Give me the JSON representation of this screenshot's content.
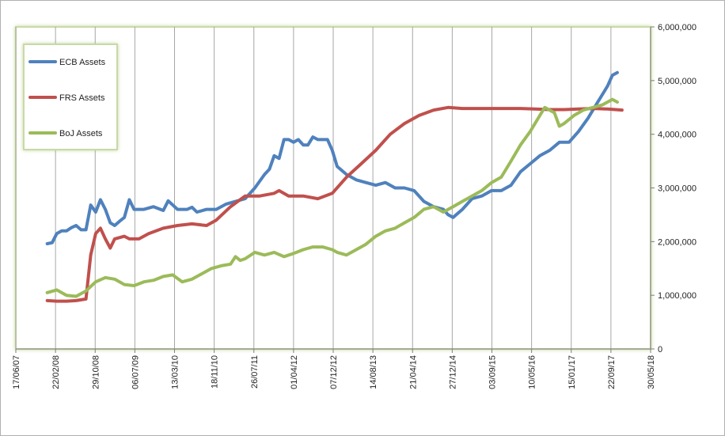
{
  "chart_data": {
    "type": "line",
    "title": "",
    "xlabel": "",
    "ylabel": "",
    "x_axis": {
      "min": "2007-06-17",
      "max": "2018-05-30",
      "tick_labels": [
        "17/06/07",
        "22/02/08",
        "29/10/08",
        "06/07/09",
        "13/03/10",
        "18/11/10",
        "26/07/11",
        "01/04/12",
        "07/12/12",
        "14/08/13",
        "21/04/14",
        "27/12/14",
        "03/09/15",
        "10/05/16",
        "15/01/17",
        "22/09/17",
        "30/05/18"
      ],
      "tick_dates": [
        "2007-06-17",
        "2008-02-22",
        "2008-10-29",
        "2009-07-06",
        "2010-03-13",
        "2010-11-18",
        "2011-07-26",
        "2012-04-01",
        "2012-12-07",
        "2013-08-14",
        "2014-04-21",
        "2014-12-27",
        "2015-09-03",
        "2016-05-10",
        "2017-01-15",
        "2017-09-22",
        "2018-05-30"
      ],
      "gridlines": true
    },
    "y_axis": {
      "min": 0,
      "max": 6000000,
      "position": "right",
      "tick_values": [
        0,
        1000000,
        2000000,
        3000000,
        4000000,
        5000000,
        6000000
      ],
      "tick_labels": [
        "0",
        "1,000,000",
        "2,000,000",
        "3,000,000",
        "4,000,000",
        "5,000,000",
        "6,000,000"
      ]
    },
    "legend": {
      "placement": "top-left",
      "entries": [
        "ECB Assets",
        "FRS Assets",
        "BoJ Assets"
      ]
    },
    "series": [
      {
        "name": "ECB Assets",
        "color": "#4f81bd",
        "points": [
          [
            "2008-01-01",
            1960000
          ],
          [
            "2008-02-01",
            1980000
          ],
          [
            "2008-03-01",
            2150000
          ],
          [
            "2008-04-01",
            2200000
          ],
          [
            "2008-05-01",
            2200000
          ],
          [
            "2008-06-01",
            2260000
          ],
          [
            "2008-07-01",
            2300000
          ],
          [
            "2008-08-01",
            2220000
          ],
          [
            "2008-09-01",
            2220000
          ],
          [
            "2008-10-01",
            2680000
          ],
          [
            "2008-11-01",
            2550000
          ],
          [
            "2008-12-01",
            2780000
          ],
          [
            "2009-01-01",
            2600000
          ],
          [
            "2009-02-01",
            2350000
          ],
          [
            "2009-03-01",
            2300000
          ],
          [
            "2009-04-01",
            2380000
          ],
          [
            "2009-05-01",
            2450000
          ],
          [
            "2009-06-01",
            2780000
          ],
          [
            "2009-07-01",
            2600000
          ],
          [
            "2009-09-01",
            2600000
          ],
          [
            "2009-11-01",
            2650000
          ],
          [
            "2010-01-01",
            2580000
          ],
          [
            "2010-02-01",
            2760000
          ],
          [
            "2010-04-01",
            2600000
          ],
          [
            "2010-06-01",
            2600000
          ],
          [
            "2010-07-01",
            2640000
          ],
          [
            "2010-08-01",
            2550000
          ],
          [
            "2010-10-01",
            2600000
          ],
          [
            "2010-12-01",
            2600000
          ],
          [
            "2011-02-01",
            2700000
          ],
          [
            "2011-04-01",
            2750000
          ],
          [
            "2011-06-01",
            2800000
          ],
          [
            "2011-08-01",
            3000000
          ],
          [
            "2011-10-01",
            3250000
          ],
          [
            "2011-11-01",
            3350000
          ],
          [
            "2011-12-01",
            3600000
          ],
          [
            "2012-01-01",
            3550000
          ],
          [
            "2012-02-01",
            3900000
          ],
          [
            "2012-03-01",
            3900000
          ],
          [
            "2012-04-01",
            3850000
          ],
          [
            "2012-05-01",
            3900000
          ],
          [
            "2012-06-01",
            3800000
          ],
          [
            "2012-07-01",
            3800000
          ],
          [
            "2012-08-01",
            3950000
          ],
          [
            "2012-09-01",
            3900000
          ],
          [
            "2012-10-01",
            3900000
          ],
          [
            "2012-11-01",
            3900000
          ],
          [
            "2012-12-01",
            3700000
          ],
          [
            "2013-01-01",
            3400000
          ],
          [
            "2013-03-01",
            3250000
          ],
          [
            "2013-05-01",
            3150000
          ],
          [
            "2013-07-01",
            3100000
          ],
          [
            "2013-09-01",
            3050000
          ],
          [
            "2013-11-01",
            3100000
          ],
          [
            "2014-01-01",
            3000000
          ],
          [
            "2014-03-01",
            3000000
          ],
          [
            "2014-05-01",
            2950000
          ],
          [
            "2014-07-01",
            2750000
          ],
          [
            "2014-09-01",
            2650000
          ],
          [
            "2014-11-01",
            2600000
          ],
          [
            "2014-12-01",
            2500000
          ],
          [
            "2015-01-01",
            2450000
          ],
          [
            "2015-03-01",
            2600000
          ],
          [
            "2015-05-01",
            2800000
          ],
          [
            "2015-07-01",
            2850000
          ],
          [
            "2015-09-01",
            2950000
          ],
          [
            "2015-11-01",
            2950000
          ],
          [
            "2016-01-01",
            3050000
          ],
          [
            "2016-03-01",
            3300000
          ],
          [
            "2016-05-01",
            3450000
          ],
          [
            "2016-07-01",
            3600000
          ],
          [
            "2016-09-01",
            3700000
          ],
          [
            "2016-11-01",
            3850000
          ],
          [
            "2017-01-01",
            3850000
          ],
          [
            "2017-03-01",
            4050000
          ],
          [
            "2017-05-01",
            4300000
          ],
          [
            "2017-07-01",
            4600000
          ],
          [
            "2017-09-01",
            4900000
          ],
          [
            "2017-10-01",
            5100000
          ],
          [
            "2017-11-01",
            5150000
          ]
        ]
      },
      {
        "name": "FRS Assets",
        "color": "#c0504d",
        "points": [
          [
            "2008-01-01",
            900000
          ],
          [
            "2008-03-01",
            890000
          ],
          [
            "2008-05-01",
            890000
          ],
          [
            "2008-07-01",
            900000
          ],
          [
            "2008-09-01",
            930000
          ],
          [
            "2008-10-01",
            1750000
          ],
          [
            "2008-11-01",
            2150000
          ],
          [
            "2008-12-01",
            2250000
          ],
          [
            "2009-01-01",
            2050000
          ],
          [
            "2009-02-01",
            1880000
          ],
          [
            "2009-03-01",
            2050000
          ],
          [
            "2009-05-01",
            2100000
          ],
          [
            "2009-06-01",
            2050000
          ],
          [
            "2009-08-01",
            2050000
          ],
          [
            "2009-10-01",
            2150000
          ],
          [
            "2010-01-01",
            2250000
          ],
          [
            "2010-04-01",
            2300000
          ],
          [
            "2010-07-01",
            2330000
          ],
          [
            "2010-10-01",
            2300000
          ],
          [
            "2010-12-01",
            2400000
          ],
          [
            "2011-03-01",
            2650000
          ],
          [
            "2011-06-01",
            2850000
          ],
          [
            "2011-09-01",
            2850000
          ],
          [
            "2011-12-01",
            2900000
          ],
          [
            "2012-01-01",
            2950000
          ],
          [
            "2012-03-01",
            2850000
          ],
          [
            "2012-06-01",
            2850000
          ],
          [
            "2012-09-01",
            2800000
          ],
          [
            "2012-12-01",
            2900000
          ],
          [
            "2013-03-01",
            3200000
          ],
          [
            "2013-06-01",
            3450000
          ],
          [
            "2013-09-01",
            3700000
          ],
          [
            "2013-12-01",
            4000000
          ],
          [
            "2014-03-01",
            4200000
          ],
          [
            "2014-06-01",
            4350000
          ],
          [
            "2014-09-01",
            4450000
          ],
          [
            "2014-12-01",
            4500000
          ],
          [
            "2015-03-01",
            4480000
          ],
          [
            "2015-06-01",
            4480000
          ],
          [
            "2015-09-01",
            4480000
          ],
          [
            "2015-12-01",
            4480000
          ],
          [
            "2016-03-01",
            4480000
          ],
          [
            "2016-06-01",
            4470000
          ],
          [
            "2016-09-01",
            4460000
          ],
          [
            "2016-12-01",
            4460000
          ],
          [
            "2017-03-01",
            4470000
          ],
          [
            "2017-06-01",
            4480000
          ],
          [
            "2017-09-01",
            4470000
          ],
          [
            "2017-12-01",
            4450000
          ]
        ]
      },
      {
        "name": "BoJ Assets",
        "color": "#9bbb59",
        "points": [
          [
            "2008-01-01",
            1050000
          ],
          [
            "2008-03-01",
            1100000
          ],
          [
            "2008-05-01",
            1000000
          ],
          [
            "2008-07-01",
            980000
          ],
          [
            "2008-09-01",
            1080000
          ],
          [
            "2008-11-01",
            1250000
          ],
          [
            "2009-01-01",
            1330000
          ],
          [
            "2009-03-01",
            1300000
          ],
          [
            "2009-05-01",
            1200000
          ],
          [
            "2009-07-01",
            1180000
          ],
          [
            "2009-09-01",
            1250000
          ],
          [
            "2009-11-01",
            1280000
          ],
          [
            "2010-01-01",
            1350000
          ],
          [
            "2010-03-01",
            1380000
          ],
          [
            "2010-05-01",
            1250000
          ],
          [
            "2010-07-01",
            1300000
          ],
          [
            "2010-09-01",
            1400000
          ],
          [
            "2010-11-01",
            1500000
          ],
          [
            "2011-01-01",
            1550000
          ],
          [
            "2011-03-01",
            1580000
          ],
          [
            "2011-04-01",
            1720000
          ],
          [
            "2011-05-01",
            1650000
          ],
          [
            "2011-06-01",
            1680000
          ],
          [
            "2011-08-01",
            1800000
          ],
          [
            "2011-10-01",
            1750000
          ],
          [
            "2011-12-01",
            1800000
          ],
          [
            "2012-02-01",
            1720000
          ],
          [
            "2012-04-01",
            1780000
          ],
          [
            "2012-06-01",
            1850000
          ],
          [
            "2012-08-01",
            1900000
          ],
          [
            "2012-10-01",
            1900000
          ],
          [
            "2012-12-01",
            1850000
          ],
          [
            "2013-01-01",
            1800000
          ],
          [
            "2013-03-01",
            1750000
          ],
          [
            "2013-05-01",
            1850000
          ],
          [
            "2013-07-01",
            1950000
          ],
          [
            "2013-09-01",
            2100000
          ],
          [
            "2013-11-01",
            2200000
          ],
          [
            "2014-01-01",
            2250000
          ],
          [
            "2014-03-01",
            2350000
          ],
          [
            "2014-05-01",
            2450000
          ],
          [
            "2014-07-01",
            2600000
          ],
          [
            "2014-09-01",
            2650000
          ],
          [
            "2014-11-01",
            2550000
          ],
          [
            "2015-01-01",
            2650000
          ],
          [
            "2015-03-01",
            2750000
          ],
          [
            "2015-05-01",
            2850000
          ],
          [
            "2015-07-01",
            2950000
          ],
          [
            "2015-09-01",
            3100000
          ],
          [
            "2015-11-01",
            3200000
          ],
          [
            "2016-01-01",
            3500000
          ],
          [
            "2016-03-01",
            3800000
          ],
          [
            "2016-05-01",
            4050000
          ],
          [
            "2016-07-01",
            4350000
          ],
          [
            "2016-08-01",
            4500000
          ],
          [
            "2016-10-01",
            4400000
          ],
          [
            "2016-11-01",
            4150000
          ],
          [
            "2016-12-01",
            4200000
          ],
          [
            "2017-02-01",
            4350000
          ],
          [
            "2017-04-01",
            4450000
          ],
          [
            "2017-06-01",
            4500000
          ],
          [
            "2017-08-01",
            4550000
          ],
          [
            "2017-10-01",
            4650000
          ],
          [
            "2017-11-01",
            4600000
          ]
        ]
      }
    ]
  }
}
